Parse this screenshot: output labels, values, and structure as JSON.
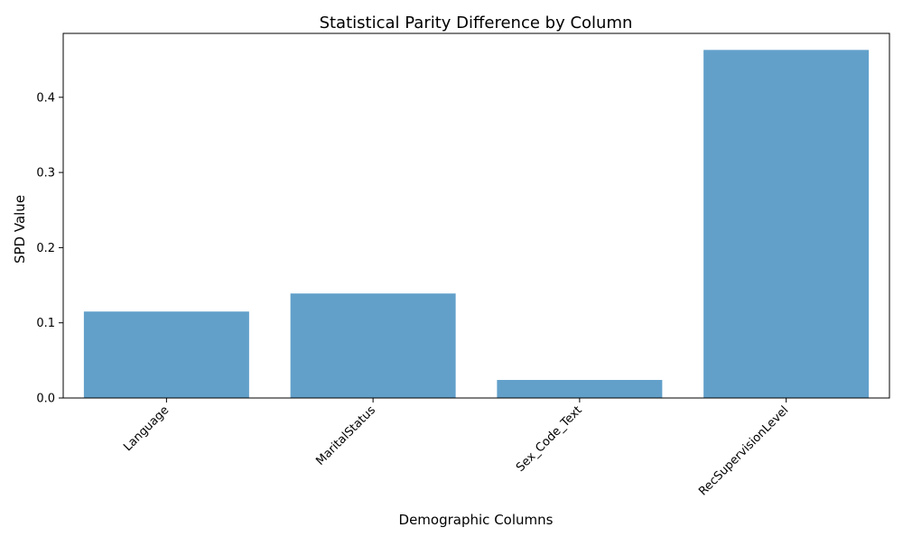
{
  "chart_data": {
    "type": "bar",
    "title": "Statistical Parity Difference by Column",
    "xlabel": "Demographic Columns",
    "ylabel": "SPD Value",
    "categories": [
      "Language",
      "MaritalStatus",
      "Sex_Code_Text",
      "RecSupervisionLevel"
    ],
    "values": [
      0.115,
      0.139,
      0.024,
      0.463
    ],
    "ylim": [
      0,
      0.485
    ],
    "yticks": [
      0.0,
      0.1,
      0.2,
      0.3,
      0.4
    ],
    "ytick_labels": [
      "0.0",
      "0.1",
      "0.2",
      "0.3",
      "0.4"
    ],
    "bar_color": "#1f77b4",
    "bar_opacity": 0.7,
    "grid": false,
    "legend": "none"
  }
}
